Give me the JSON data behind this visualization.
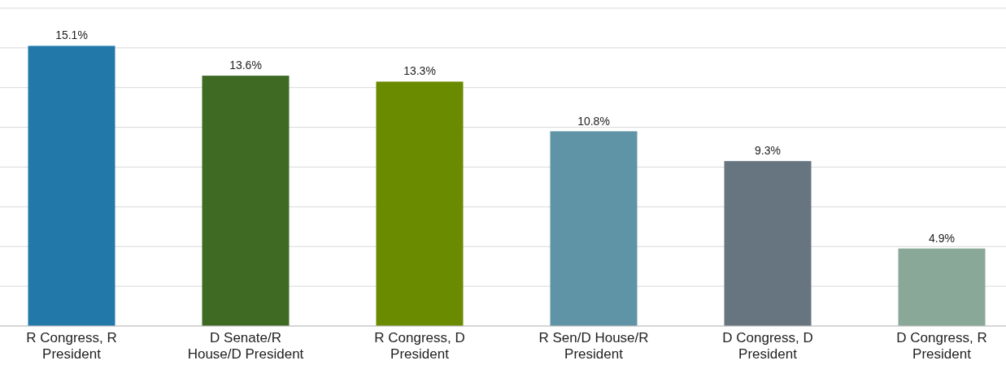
{
  "chart_data": {
    "type": "bar",
    "categories": [
      "R Congress, R President",
      "D Senate/R House/D President",
      "R Congress, D President",
      "R Sen/D House/R President",
      "D Congress, D President",
      "D Congress, R President"
    ],
    "values": [
      15.1,
      13.6,
      13.3,
      10.8,
      9.3,
      4.9
    ],
    "colors": [
      "#2278a9",
      "#3f6a24",
      "#6a8a00",
      "#5f93a6",
      "#66757f",
      "#8aa897"
    ],
    "value_labels": [
      "15.1%",
      "13.6%",
      "13.3%",
      "10.8%",
      "9.3%",
      "4.9%"
    ],
    "ylim": [
      1,
      17
    ],
    "yticks": [
      {
        "value": 1,
        "label": null
      },
      {
        "value": 3,
        "label": null
      },
      {
        "value": 5,
        "label": null
      },
      {
        "value": 7,
        "label": null
      },
      {
        "value": 9,
        "label": null
      },
      {
        "value": 11,
        "label": null
      },
      {
        "value": 13,
        "label": null
      },
      {
        "value": 15,
        "label": null
      },
      {
        "value": 17,
        "label": null
      }
    ],
    "grid": "y",
    "tick_labels": "x"
  }
}
